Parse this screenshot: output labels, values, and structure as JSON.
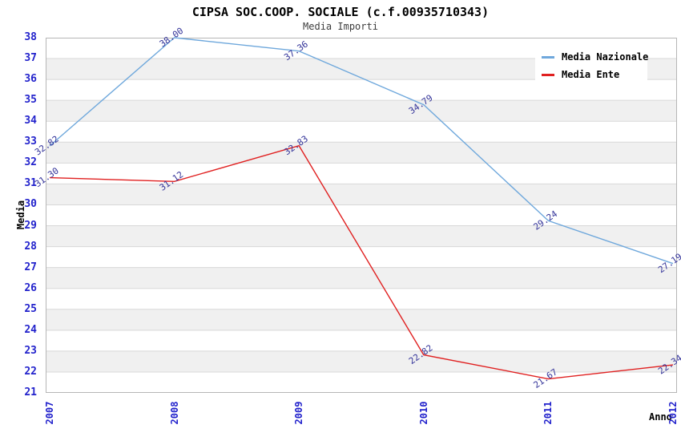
{
  "title": "CIPSA SOC.COOP. SOCIALE (c.f.00935710343)",
  "subtitle": "Media Importi",
  "chart_data": {
    "type": "line",
    "x": [
      "2007",
      "2008",
      "2009",
      "2010",
      "2011",
      "2012"
    ],
    "xlabel": "Anno",
    "ylabel": "Media",
    "ylim": [
      21,
      38
    ],
    "y_tick_step": 1,
    "grid": "horizontal-bands",
    "legend_position": "top-right",
    "band_colors": [
      "#ffffff",
      "#f0f0f0"
    ],
    "gridline_color": "#d8d8d8",
    "border_color": "#b6b6b6",
    "tick_label_color": "#2222cc",
    "point_label_color": "#333399",
    "series": [
      {
        "name": "Media Nazionale",
        "color": "#6fa8dc",
        "values": [
          32.82,
          38.0,
          37.36,
          34.79,
          29.24,
          27.19
        ]
      },
      {
        "name": "Media Ente",
        "color": "#e02020",
        "values": [
          31.3,
          31.12,
          32.83,
          22.82,
          21.67,
          22.34
        ]
      }
    ]
  }
}
